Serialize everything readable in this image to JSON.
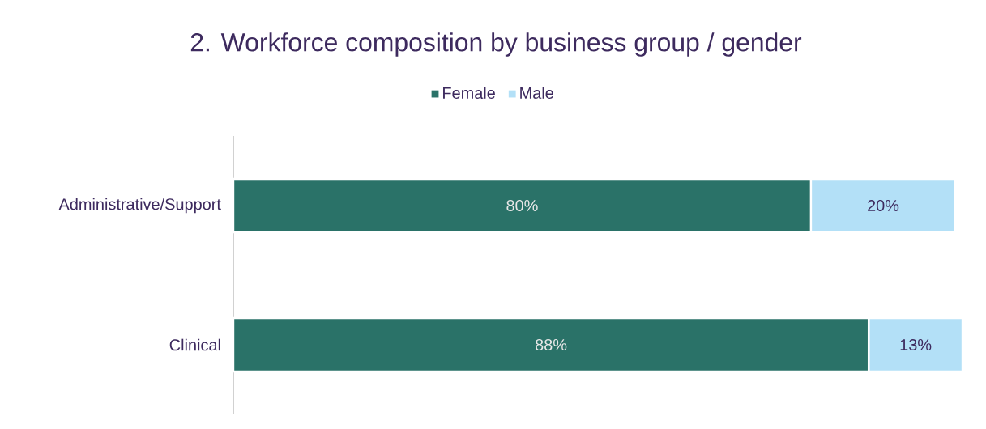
{
  "chart_data": {
    "type": "bar",
    "orientation": "horizontal",
    "stacked": true,
    "title": "2. Workforce composition by business group / gender",
    "categories": [
      "Administrative/Support",
      "Clinical"
    ],
    "series": [
      {
        "name": "Female",
        "color": "#2a7268",
        "values": [
          80,
          88
        ],
        "value_labels": [
          "80%",
          "88%"
        ]
      },
      {
        "name": "Male",
        "color": "#b3e0f7",
        "values": [
          20,
          13
        ],
        "value_labels": [
          "20%",
          "13%"
        ]
      }
    ],
    "legend": "top",
    "tick_labels": "y"
  }
}
